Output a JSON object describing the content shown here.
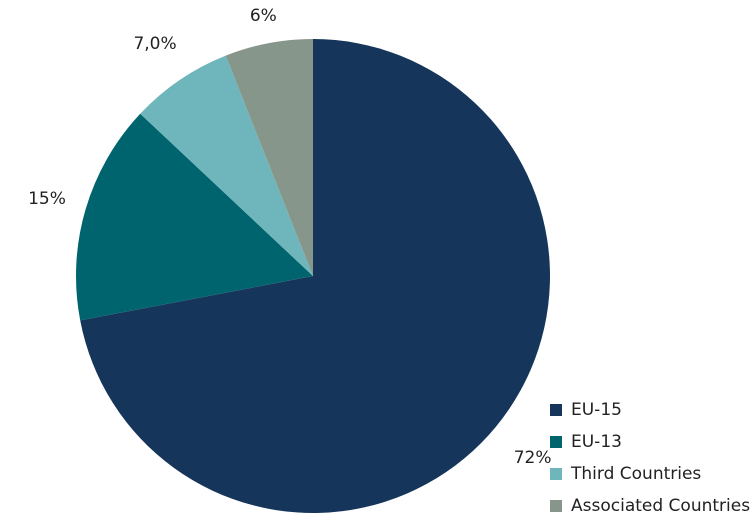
{
  "chart_data": {
    "type": "pie",
    "categories": [
      "EU-15",
      "EU-13",
      "Third Countries",
      "Associated Countries"
    ],
    "values": [
      72,
      15,
      7.0,
      6
    ],
    "data_labels": [
      "72%",
      "15%",
      "7,0%",
      "6%"
    ],
    "colors": [
      "#16355a",
      "#00646f",
      "#6fb5bc",
      "#87968a"
    ],
    "start_angle": "12 o'clock",
    "direction": "clockwise",
    "legend": {
      "position": "bottom-right",
      "items": [
        "EU-15",
        "EU-13",
        "Third Countries",
        "Associated Countries"
      ]
    }
  }
}
